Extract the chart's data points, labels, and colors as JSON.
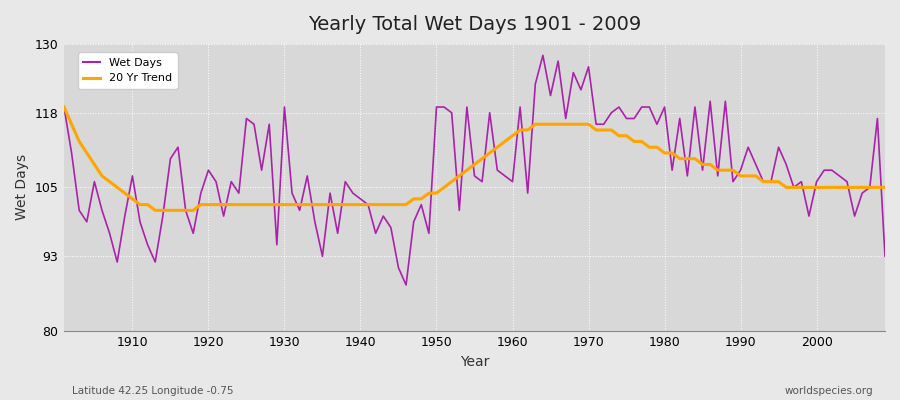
{
  "title": "Yearly Total Wet Days 1901 - 2009",
  "xlabel": "Year",
  "ylabel": "Wet Days",
  "lat_lon_label": "Latitude 42.25 Longitude -0.75",
  "source_label": "worldspecies.org",
  "line_color": "#AA22AA",
  "trend_color": "#FFA500",
  "bg_color": "#E8E8E8",
  "plot_bg_color": "#D8D8D8",
  "ylim": [
    80,
    130
  ],
  "xlim": [
    1901,
    2009
  ],
  "yticks": [
    80,
    93,
    105,
    118,
    130
  ],
  "xticks": [
    1910,
    1920,
    1930,
    1940,
    1950,
    1960,
    1970,
    1980,
    1990,
    2000
  ],
  "years": [
    1901,
    1902,
    1903,
    1904,
    1905,
    1906,
    1907,
    1908,
    1909,
    1910,
    1911,
    1912,
    1913,
    1914,
    1915,
    1916,
    1917,
    1918,
    1919,
    1920,
    1921,
    1922,
    1923,
    1924,
    1925,
    1926,
    1927,
    1928,
    1929,
    1930,
    1931,
    1932,
    1933,
    1934,
    1935,
    1936,
    1937,
    1938,
    1939,
    1940,
    1941,
    1942,
    1943,
    1944,
    1945,
    1946,
    1947,
    1948,
    1949,
    1950,
    1951,
    1952,
    1953,
    1954,
    1955,
    1956,
    1957,
    1958,
    1959,
    1960,
    1961,
    1962,
    1963,
    1964,
    1965,
    1966,
    1967,
    1968,
    1969,
    1970,
    1971,
    1972,
    1973,
    1974,
    1975,
    1976,
    1977,
    1978,
    1979,
    1980,
    1981,
    1982,
    1983,
    1984,
    1985,
    1986,
    1987,
    1988,
    1989,
    1990,
    1991,
    1992,
    1993,
    1994,
    1995,
    1996,
    1997,
    1998,
    1999,
    2000,
    2001,
    2002,
    2003,
    2004,
    2005,
    2006,
    2007,
    2008,
    2009
  ],
  "wet_days": [
    119,
    111,
    101,
    99,
    106,
    101,
    97,
    92,
    100,
    107,
    99,
    95,
    92,
    100,
    110,
    112,
    101,
    97,
    104,
    108,
    106,
    100,
    106,
    104,
    117,
    116,
    108,
    116,
    95,
    119,
    104,
    101,
    107,
    99,
    93,
    104,
    97,
    106,
    104,
    103,
    102,
    97,
    100,
    98,
    91,
    88,
    99,
    102,
    97,
    119,
    119,
    118,
    101,
    119,
    107,
    106,
    118,
    108,
    107,
    106,
    119,
    104,
    123,
    128,
    121,
    127,
    117,
    125,
    122,
    126,
    116,
    116,
    118,
    119,
    117,
    117,
    119,
    119,
    116,
    119,
    108,
    117,
    107,
    119,
    108,
    120,
    107,
    120,
    106,
    108,
    112,
    109,
    106,
    106,
    112,
    109,
    105,
    106,
    100,
    106,
    108,
    108,
    107,
    106,
    100,
    104,
    105,
    117,
    93
  ],
  "trend": [
    119,
    116,
    113,
    111,
    109,
    107,
    106,
    105,
    104,
    103,
    102,
    102,
    101,
    101,
    101,
    101,
    101,
    101,
    102,
    102,
    102,
    102,
    102,
    102,
    102,
    102,
    102,
    102,
    102,
    102,
    102,
    102,
    102,
    102,
    102,
    102,
    102,
    102,
    102,
    102,
    102,
    102,
    102,
    102,
    102,
    102,
    103,
    103,
    104,
    104,
    105,
    106,
    107,
    108,
    109,
    110,
    111,
    112,
    113,
    114,
    115,
    115,
    116,
    116,
    116,
    116,
    116,
    116,
    116,
    116,
    115,
    115,
    115,
    114,
    114,
    113,
    113,
    112,
    112,
    111,
    111,
    110,
    110,
    110,
    109,
    109,
    108,
    108,
    108,
    107,
    107,
    107,
    106,
    106,
    106,
    105,
    105,
    105,
    105,
    105,
    105,
    105,
    105,
    105,
    105,
    105,
    105,
    105,
    105
  ]
}
